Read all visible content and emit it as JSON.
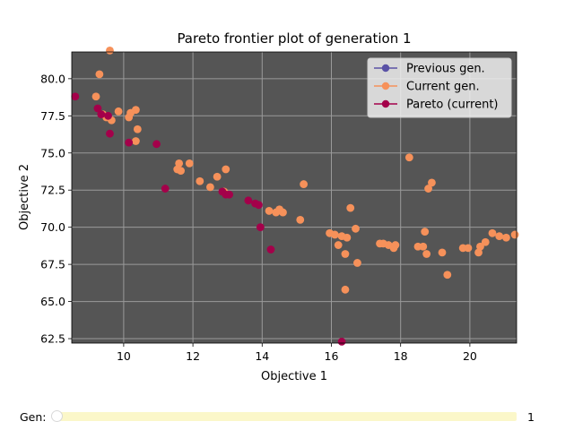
{
  "chart_data": {
    "type": "scatter",
    "title": "Pareto frontier plot of generation 1",
    "xlabel": "Objective 1",
    "ylabel": "Objective 2",
    "xlim": [
      8.5,
      21.35
    ],
    "ylim": [
      62.2,
      81.8
    ],
    "xticks": [
      10,
      12,
      14,
      16,
      18,
      20
    ],
    "yticks": [
      62.5,
      65.0,
      67.5,
      70.0,
      72.5,
      75.0,
      77.5,
      80.0
    ],
    "grid": true,
    "background_color": "#555555",
    "legend_position": "top-right",
    "series": [
      {
        "name": "Previous gen.",
        "color": "#5a52a6",
        "points": []
      },
      {
        "name": "Current gen.",
        "color": "#f6915a",
        "points": [
          [
            9.2,
            78.8
          ],
          [
            9.3,
            80.3
          ],
          [
            9.6,
            81.9
          ],
          [
            9.4,
            77.6
          ],
          [
            9.5,
            77.4
          ],
          [
            9.65,
            77.2
          ],
          [
            9.85,
            77.8
          ],
          [
            10.15,
            77.4
          ],
          [
            10.2,
            77.7
          ],
          [
            10.35,
            77.9
          ],
          [
            10.4,
            76.6
          ],
          [
            10.35,
            75.8
          ],
          [
            11.55,
            73.9
          ],
          [
            11.6,
            74.3
          ],
          [
            11.65,
            73.8
          ],
          [
            11.9,
            74.3
          ],
          [
            12.2,
            73.1
          ],
          [
            12.5,
            72.7
          ],
          [
            12.7,
            73.4
          ],
          [
            12.9,
            72.4
          ],
          [
            12.95,
            73.9
          ],
          [
            14.2,
            71.1
          ],
          [
            14.4,
            71.0
          ],
          [
            14.5,
            71.2
          ],
          [
            14.6,
            71.0
          ],
          [
            15.1,
            70.5
          ],
          [
            15.2,
            72.9
          ],
          [
            15.95,
            69.6
          ],
          [
            16.1,
            69.5
          ],
          [
            16.2,
            68.8
          ],
          [
            16.3,
            69.4
          ],
          [
            16.4,
            68.2
          ],
          [
            16.45,
            69.3
          ],
          [
            16.55,
            71.3
          ],
          [
            16.7,
            69.9
          ],
          [
            16.75,
            67.6
          ],
          [
            16.4,
            65.8
          ],
          [
            17.4,
            68.9
          ],
          [
            17.5,
            68.9
          ],
          [
            17.65,
            68.8
          ],
          [
            17.8,
            68.6
          ],
          [
            17.85,
            68.8
          ],
          [
            18.25,
            74.7
          ],
          [
            18.5,
            68.7
          ],
          [
            18.65,
            68.7
          ],
          [
            18.7,
            69.7
          ],
          [
            18.75,
            68.2
          ],
          [
            18.8,
            72.6
          ],
          [
            18.9,
            73.0
          ],
          [
            19.2,
            68.3
          ],
          [
            19.35,
            66.8
          ],
          [
            19.8,
            68.6
          ],
          [
            19.95,
            68.6
          ],
          [
            20.25,
            68.3
          ],
          [
            20.3,
            68.7
          ],
          [
            20.45,
            69.0
          ],
          [
            20.65,
            69.6
          ],
          [
            20.85,
            69.4
          ],
          [
            21.05,
            69.3
          ],
          [
            21.3,
            69.5
          ]
        ]
      },
      {
        "name": "Pareto (current)",
        "color": "#a4004a",
        "points": [
          [
            8.6,
            78.8
          ],
          [
            9.25,
            78.0
          ],
          [
            9.35,
            77.6
          ],
          [
            9.55,
            77.5
          ],
          [
            9.6,
            76.3
          ],
          [
            10.15,
            75.7
          ],
          [
            10.95,
            75.6
          ],
          [
            11.2,
            72.6
          ],
          [
            12.85,
            72.4
          ],
          [
            12.95,
            72.2
          ],
          [
            13.05,
            72.2
          ],
          [
            13.6,
            71.8
          ],
          [
            13.8,
            71.6
          ],
          [
            13.9,
            71.5
          ],
          [
            13.95,
            70.0
          ],
          [
            14.25,
            68.5
          ],
          [
            16.3,
            62.3
          ]
        ]
      }
    ]
  },
  "slider": {
    "label": "Gen:",
    "value": "1",
    "level": 0
  }
}
